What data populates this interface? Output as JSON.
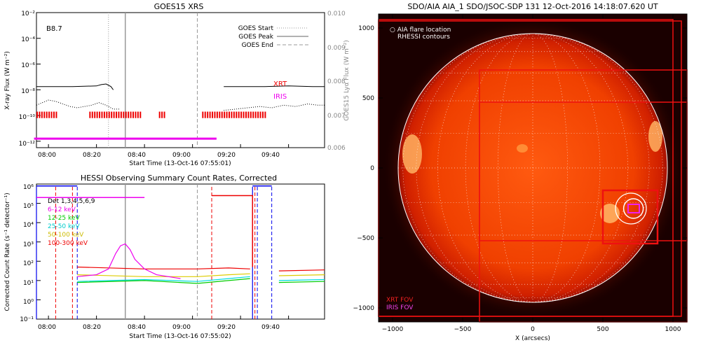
{
  "colors": {
    "axes": "#000000",
    "goes_flux": "#000000",
    "goes_start": "#999999",
    "goes_peak": "#999999",
    "goes_end": "#999999",
    "xrt_bar": "#ee0000",
    "iris_bar": "#ee00ee",
    "ch_det": "#000000",
    "ch_6_12": "#ee00ee",
    "ch_12_25": "#00cc00",
    "ch_25_50": "#00dddd",
    "ch_50_100": "#ddcc00",
    "ch_100_300": "#ee0000",
    "rhessi_lines": "#0000ee",
    "red_marker": "#ee0000",
    "sun_dark_bg": "#1a0000",
    "sun_core": "#ff7a1a",
    "sun_limb": "#cc2000",
    "sun_grid": "#ffffff",
    "xrt_fov": "#ee1111",
    "iris_fov": "#ee22ee",
    "fov_text_xrt": "#ee2222",
    "fov_text_iris": "#ee44ee"
  },
  "chart_data": [
    {
      "type": "line",
      "title": "GOES15 XRS",
      "xlabel": "Start Time (13-Oct-16 07:55:01)",
      "ylabel": "X-ray Flux (W m⁻²)",
      "ylabel_right": "GOES15 Lyα Flux (W m⁻²)",
      "x_ticks": [
        "08:00",
        "08:20",
        "08:40",
        "09:00",
        "09:20",
        "09:40"
      ],
      "y_ticks": [
        "10⁻²",
        "10⁻⁴",
        "10⁻⁶",
        "10⁻⁸",
        "10⁻¹⁰",
        "10⁻¹²"
      ],
      "y_right_ticks": [
        "0.010",
        "0.009",
        "0.008",
        "0.007",
        "0.006"
      ],
      "xlim_min": [
        -5,
        115
      ],
      "ylim_log": [
        -12.5,
        -2
      ],
      "y2lim": [
        0.006,
        0.01
      ],
      "grid": false,
      "class_label": "B8.7",
      "legend": [
        "GOES Start",
        "GOES Peak",
        "GOES End"
      ],
      "legend_pos": "top-right",
      "markers_min": {
        "start": 25,
        "peak": 32,
        "end": 62
      },
      "long_flux": [
        [
          -5,
          -7.75
        ],
        [
          0,
          -7.75
        ],
        [
          10,
          -7.75
        ],
        [
          20,
          -7.7
        ],
        [
          22,
          -7.6
        ],
        [
          24,
          -7.55
        ],
        [
          26,
          -7.75
        ],
        [
          27,
          -8
        ]
      ],
      "long_flux2": [
        [
          73,
          -7.75
        ],
        [
          80,
          -7.75
        ],
        [
          90,
          -7.75
        ],
        [
          100,
          -7.7
        ],
        [
          110,
          -7.75
        ],
        [
          115,
          -7.75
        ]
      ],
      "short_flux": [
        [
          -5,
          -9.2
        ],
        [
          0,
          -8.8
        ],
        [
          3,
          -8.9
        ],
        [
          6,
          -9.1
        ],
        [
          9,
          -9.3
        ],
        [
          12,
          -9.4
        ],
        [
          15,
          -9.3
        ],
        [
          18,
          -9.2
        ],
        [
          21,
          -9.0
        ],
        [
          24,
          -9.2
        ],
        [
          27,
          -9.5
        ],
        [
          30,
          -9.5
        ]
      ],
      "short_flux2": [
        [
          73,
          -9.6
        ],
        [
          78,
          -9.5
        ],
        [
          83,
          -9.4
        ],
        [
          88,
          -9.3
        ],
        [
          93,
          -9.4
        ],
        [
          98,
          -9.2
        ],
        [
          103,
          -9.3
        ],
        [
          108,
          -9.1
        ],
        [
          112,
          -9.2
        ],
        [
          115,
          -9.2
        ]
      ],
      "xrt_label": "XRT",
      "iris_label": "IRIS",
      "xrt_label_y": -7.7,
      "iris_label_y": -8.7,
      "xrt_obs_min": [
        [
          -5,
          3
        ],
        [
          17,
          38
        ],
        [
          46,
          48
        ],
        [
          64,
          90
        ]
      ],
      "xrt_band_log": [
        -10.2,
        -9.7
      ],
      "iris_obs_min": [
        [
          -6,
          70
        ]
      ],
      "iris_level_log": -11.8
    },
    {
      "type": "line",
      "title": "HESSI Observing Summary Count Rates, Corrected",
      "xlabel": "Start Time (13-Oct-16 07:55:02)",
      "ylabel": "Corrected Count Rate (s⁻¹ detector⁻¹)",
      "x_ticks": [
        "08:00",
        "08:20",
        "08:40",
        "09:00",
        "09:20",
        "09:40"
      ],
      "y_ticks": [
        "10⁶",
        "10⁵",
        "10⁴",
        "10³",
        "10²",
        "10¹",
        "10⁰",
        "10⁻¹"
      ],
      "xlim_min": [
        -5,
        115
      ],
      "ylim_log": [
        -1,
        6
      ],
      "legend": [
        "Det 1,3,4,5,6,9",
        "6-12 keV",
        "12-25 keV",
        "25-50 keV",
        "50-100 keV",
        "100-300 keV"
      ],
      "legend_pos": "top-left",
      "peak_min": 32,
      "end_min": 62,
      "red_vlines_min": [
        3,
        10,
        68,
        86
      ],
      "blue_vlines_min": [
        12,
        87,
        93
      ],
      "blue_solid_vlines_min": [
        -5,
        85
      ],
      "red_step_segments": [
        [
          [
            68,
            5.4
          ],
          [
            85,
            5.4
          ],
          [
            85,
            1.7
          ]
        ]
      ],
      "blue_top_segments": [
        [
          -5,
          5.9,
          12
        ],
        [
          85,
          5.9,
          93
        ]
      ],
      "magenta_marker_segment": [
        -5,
        5.3,
        40
      ],
      "magenta_burst": [
        [
          12,
          1.2
        ],
        [
          20,
          1.3
        ],
        [
          25,
          1.6
        ],
        [
          28,
          2.4
        ],
        [
          30,
          2.8
        ],
        [
          32,
          2.9
        ],
        [
          34,
          2.6
        ],
        [
          36,
          2.1
        ],
        [
          40,
          1.6
        ],
        [
          45,
          1.3
        ],
        [
          50,
          1.2
        ],
        [
          55,
          1.1
        ]
      ],
      "series": [
        {
          "name": "100-300 keV",
          "color_key": "ch_100_300",
          "segments": [
            [
              [
                12,
                1.7
              ],
              [
                40,
                1.6
              ],
              [
                62,
                1.6
              ],
              [
                75,
                1.65
              ],
              [
                84,
                1.6
              ]
            ],
            [
              [
                96,
                1.5
              ],
              [
                115,
                1.55
              ]
            ]
          ]
        },
        {
          "name": "50-100 keV",
          "color_key": "ch_50_100",
          "segments": [
            [
              [
                12,
                1.3
              ],
              [
                40,
                1.2
              ],
              [
                62,
                1.2
              ],
              [
                75,
                1.3
              ],
              [
                84,
                1.35
              ]
            ],
            [
              [
                96,
                1.25
              ],
              [
                115,
                1.3
              ]
            ]
          ]
        },
        {
          "name": "25-50 keV",
          "color_key": "ch_25_50",
          "segments": [
            [
              [
                12,
                0.95
              ],
              [
                40,
                1.05
              ],
              [
                62,
                0.95
              ],
              [
                75,
                1.1
              ],
              [
                84,
                1.2
              ]
            ],
            [
              [
                96,
                1.0
              ],
              [
                115,
                1.05
              ]
            ]
          ]
        },
        {
          "name": "12-25 keV",
          "color_key": "ch_12_25",
          "segments": [
            [
              [
                12,
                0.9
              ],
              [
                40,
                1.0
              ],
              [
                62,
                0.85
              ],
              [
                75,
                1.0
              ],
              [
                84,
                1.1
              ]
            ],
            [
              [
                96,
                0.9
              ],
              [
                115,
                0.95
              ]
            ]
          ]
        }
      ]
    },
    {
      "type": "heatmap",
      "title": "SDO/AIA AIA_1 SDO/JSOC-SDP 131 12-Oct-2016 14:18:07.620 UT",
      "xlabel": "X (arcsecs)",
      "x_ticks": [
        "−1000",
        "−500",
        "0",
        "500",
        "1000"
      ],
      "y_ticks": [
        "1000",
        "500",
        "0",
        "−500",
        "−1000"
      ],
      "xlim": [
        -1100,
        1100
      ],
      "ylim": [
        -1100,
        1100
      ],
      "solar_radius": 960,
      "legend_aia": "AIA flare location",
      "legend_rhessi": "RHESSI contours",
      "fov_labels": [
        "XRT FOV",
        "IRIS FOV"
      ],
      "xrt_fovs": [
        [
          -1100,
          1060,
          1000,
          -1060
        ],
        [
          -380,
          700,
          1100,
          -1100
        ],
        [
          -1100,
          1050,
          1060,
          -1060
        ],
        [
          -380,
          470,
          1100,
          -520
        ]
      ],
      "xrt_small_fov": [
        500,
        -540,
        890,
        -160
      ],
      "iris_fov": [
        680,
        -320,
        760,
        -260
      ],
      "rhessi_circle": {
        "cx": 700,
        "cy": -290,
        "r": 110
      },
      "aia_ring": {
        "cx": 718,
        "cy": -290,
        "r": 70
      }
    }
  ]
}
